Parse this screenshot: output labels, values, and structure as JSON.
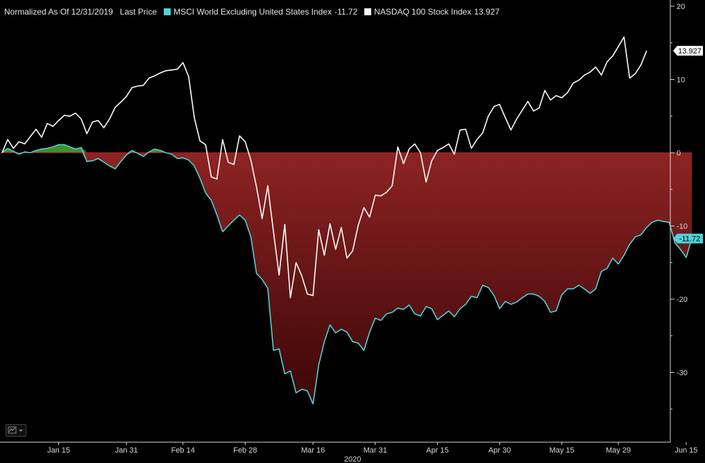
{
  "legend": {
    "normalized_label": "Normalized As Of 12/31/2019",
    "price_label": "Last Price",
    "series": [
      {
        "name": "MSCI World Excluding United States Index",
        "value": "-11.72",
        "color": "#4fd3d9"
      },
      {
        "name": "NASDAQ 100 Stock Index",
        "value": "13.927",
        "color": "#ffffff"
      }
    ]
  },
  "colors": {
    "background": "#000000",
    "positive_fill": "#3f8f2a",
    "negative_fill_top": "#8e2323",
    "negative_fill_bottom": "#3b0707",
    "axis": "#d9d9d9"
  },
  "toolbar": {
    "chart_icon": "line-chart-icon"
  },
  "chart_data": {
    "type": "line",
    "title": "",
    "ylim": [
      -37.5,
      20
    ],
    "y_ticks": [
      20,
      10,
      0,
      -10,
      -20,
      -30
    ],
    "x_tick_labels": [
      "Jan 15",
      "Jan 31",
      "Feb 14",
      "Feb 28",
      "Mar 16",
      "Mar 31",
      "Apr 15",
      "Apr 30",
      "May 15",
      "May 29",
      "Jun 15"
    ],
    "x_tick_positions": [
      10,
      22,
      32,
      43,
      55,
      66,
      77,
      88,
      99,
      109,
      121
    ],
    "year_label": "2020",
    "year_label_position": 62,
    "x_range": [
      0,
      122
    ],
    "series": [
      {
        "name": "MSCI World Excluding United States Index",
        "last_value": "-11.72",
        "values": [
          0,
          0.6,
          0.2,
          -0.2,
          0.1,
          0,
          0.3,
          0.5,
          0.6,
          0.8,
          1.1,
          1.1,
          0.8,
          0.5,
          0.7,
          -1.2,
          -1.1,
          -0.8,
          -1.3,
          -1.8,
          -2.2,
          -1.2,
          -0.3,
          0.3,
          -0.1,
          -0.5,
          0.1,
          0.5,
          0.3,
          0,
          -0.2,
          -0.8,
          -0.7,
          -1.0,
          -1.8,
          -3.5,
          -5.5,
          -6.5,
          -8.5,
          -10.8,
          -10.0,
          -9.2,
          -8.5,
          -9.2,
          -11.5,
          -16.5,
          -17.3,
          -18.5,
          -27.0,
          -26.8,
          -30.2,
          -29.8,
          -32.8,
          -32.3,
          -32.5,
          -34.3,
          -29.0,
          -25.8,
          -23.5,
          -24.6,
          -24.1,
          -24.5,
          -25.8,
          -26.0,
          -27.0,
          -24.5,
          -22.6,
          -22.9,
          -22.0,
          -21.8,
          -21.2,
          -21.4,
          -20.8,
          -22.0,
          -22.3,
          -21.0,
          -21.3,
          -22.8,
          -22.2,
          -21.6,
          -22.4,
          -21.3,
          -20.7,
          -19.6,
          -19.8,
          -18.1,
          -18.4,
          -19.5,
          -21.3,
          -20.3,
          -20.7,
          -20.4,
          -19.8,
          -19.3,
          -19.3,
          -19.6,
          -20.3,
          -21.8,
          -21.6,
          -19.4,
          -18.6,
          -18.6,
          -18.1,
          -18.6,
          -19.2,
          -18.6,
          -16.2,
          -15.8,
          -14.4,
          -15.2,
          -14.0,
          -12.5,
          -11.5,
          -11.2,
          -10.2,
          -9.5,
          -9.2,
          -9.4,
          -9.5,
          -12.3,
          -13.2,
          -14.3,
          -11.72
        ]
      },
      {
        "name": "NASDAQ 100 Stock Index",
        "last_value": "13.927",
        "values": [
          0,
          1.8,
          0.6,
          1.5,
          1.2,
          2.2,
          3.2,
          2.1,
          4.0,
          3.6,
          4.4,
          5.1,
          5.0,
          5.4,
          4.6,
          2.6,
          4.2,
          4.4,
          3.4,
          4.6,
          6.2,
          6.9,
          7.7,
          8.9,
          9.1,
          9.2,
          10.2,
          10.5,
          10.9,
          11.2,
          11.3,
          11.4,
          12.3,
          10.4,
          4.8,
          1.6,
          1.1,
          -3.3,
          -3.6,
          1.8,
          -1.3,
          -1.6,
          2.3,
          1.5,
          -1.0,
          -4.7,
          -9.0,
          -4.5,
          -10.8,
          -16.7,
          -9.8,
          -19.8,
          -15.0,
          -16.8,
          -19.3,
          -19.5,
          -10.5,
          -14.0,
          -9.7,
          -13.2,
          -10.2,
          -14.4,
          -13.4,
          -9.9,
          -7.5,
          -8.8,
          -5.8,
          -5.9,
          -5.4,
          -4.5,
          0.8,
          -1.5,
          0.5,
          1.2,
          0,
          -4.0,
          -1.1,
          0.3,
          0.7,
          1.2,
          -0.2,
          3.1,
          3.2,
          0.6,
          1.8,
          2.7,
          5.0,
          6.3,
          6.6,
          4.8,
          3.1,
          4.6,
          5.8,
          7.0,
          5.7,
          6.1,
          8.5,
          7.2,
          7.8,
          7.5,
          8.2,
          9.5,
          9.9,
          10.6,
          11.0,
          11.7,
          10.6,
          12.4,
          13.2,
          14.5,
          15.8,
          10.2,
          10.8,
          12.0,
          13.927
        ]
      }
    ]
  }
}
